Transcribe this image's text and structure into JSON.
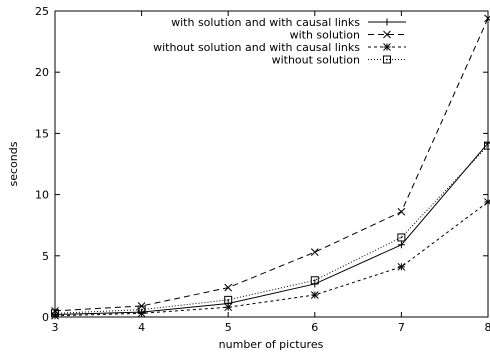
{
  "chart_data": {
    "type": "line",
    "xlabel": "number of pictures",
    "ylabel": "seconds",
    "xlim": [
      3,
      8
    ],
    "ylim": [
      0,
      25
    ],
    "xticks": [
      3,
      4,
      5,
      6,
      7,
      8
    ],
    "yticks": [
      0,
      5,
      10,
      15,
      20,
      25
    ],
    "x": [
      3,
      4,
      5,
      6,
      7,
      8
    ],
    "grid": false,
    "legend_position": "top-right",
    "series": [
      {
        "name": "with solution and with causal links",
        "values": [
          0.2,
          0.4,
          1.1,
          2.7,
          5.9,
          14.2
        ],
        "marker": "plus",
        "dash": "solid",
        "color": "#000000"
      },
      {
        "name": "with solution",
        "values": [
          0.5,
          0.9,
          2.4,
          5.3,
          8.6,
          24.4
        ],
        "marker": "cross",
        "dash": "dashed",
        "color": "#000000"
      },
      {
        "name": "without solution and with causal links",
        "values": [
          0.1,
          0.3,
          0.8,
          1.8,
          4.1,
          9.4
        ],
        "marker": "star",
        "dash": "dashed-fine",
        "color": "#000000"
      },
      {
        "name": "without solution",
        "values": [
          0.3,
          0.6,
          1.4,
          3.0,
          6.5,
          14.0
        ],
        "marker": "square-dot",
        "dash": "dotted",
        "color": "#000000"
      }
    ]
  }
}
